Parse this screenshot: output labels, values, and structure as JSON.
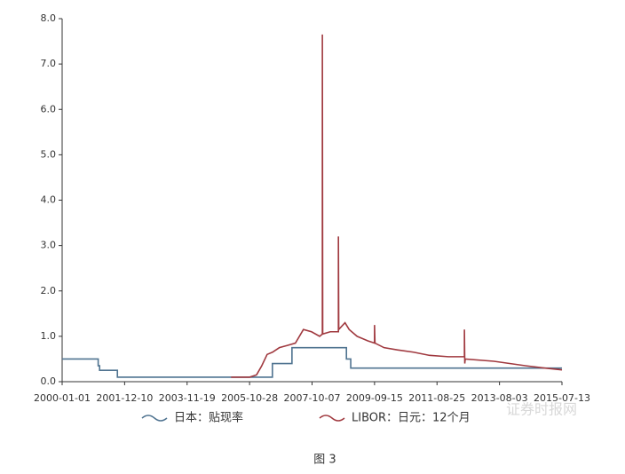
{
  "chart_data": {
    "type": "line",
    "xlim": [
      "2000-01-01",
      "2015-07-13"
    ],
    "xticks": [
      "2000-01-01",
      "2001-12-10",
      "2003-11-19",
      "2005-10-28",
      "2007-10-07",
      "2009-09-15",
      "2011-08-25",
      "2013-08-03",
      "2015-07-13"
    ],
    "ylim": [
      0,
      8
    ],
    "yticks": [
      {
        "value": 0,
        "label": "0.0"
      },
      {
        "value": 1,
        "label": "1.0"
      },
      {
        "value": 2,
        "label": "2.0"
      },
      {
        "value": 3,
        "label": "3.0"
      },
      {
        "value": 4,
        "label": "4.0"
      },
      {
        "value": 5,
        "label": "5.0"
      },
      {
        "value": 6,
        "label": "6.0"
      },
      {
        "value": 7,
        "label": "7.0"
      },
      {
        "value": 8,
        "label": "8.0"
      }
    ],
    "series": [
      {
        "name": "日本：贴现率",
        "color": "#4f7390",
        "x": [
          "2000-01-01",
          "2001-02-13",
          "2001-02-13",
          "2001-03-01",
          "2001-03-01",
          "2001-09-19",
          "2001-09-19",
          "2006-07-14",
          "2006-07-14",
          "2007-02-21",
          "2007-02-21",
          "2008-10-31",
          "2008-10-31",
          "2008-12-19",
          "2008-12-19",
          "2015-07-13"
        ],
        "values": [
          0.5,
          0.5,
          0.35,
          0.35,
          0.25,
          0.25,
          0.1,
          0.1,
          0.4,
          0.4,
          0.75,
          0.75,
          0.5,
          0.5,
          0.3,
          0.3
        ]
      },
      {
        "name": "LIBOR：日元：12个月",
        "color": "#a0393f",
        "x": [
          "2005-04-01",
          "2005-10-28",
          "2006-01-15",
          "2006-03-15",
          "2006-05-15",
          "2006-07-15",
          "2006-10-01",
          "2007-01-01",
          "2007-04-01",
          "2007-07-01",
          "2007-10-01",
          "2008-01-01",
          "2008-02-01",
          "2008-02-01",
          "2008-02-05",
          "2008-05-01",
          "2008-08-01",
          "2008-08-01",
          "2008-08-05",
          "2008-10-15",
          "2008-12-01",
          "2009-03-01",
          "2009-07-01",
          "2009-09-15",
          "2009-09-15",
          "2009-09-20",
          "2010-01-01",
          "2010-06-01",
          "2010-12-01",
          "2011-06-01",
          "2012-01-01",
          "2012-07-01",
          "2012-07-01",
          "2012-07-05",
          "2012-07-10",
          "2013-06-01",
          "2014-06-01",
          "2015-01-01",
          "2015-07-13"
        ],
        "values": [
          0.1,
          0.1,
          0.15,
          0.35,
          0.6,
          0.65,
          0.75,
          0.8,
          0.85,
          1.15,
          1.1,
          1.0,
          1.05,
          7.65,
          1.05,
          1.1,
          1.1,
          3.2,
          1.15,
          1.3,
          1.15,
          1.0,
          0.9,
          0.85,
          1.25,
          0.85,
          0.75,
          0.7,
          0.65,
          0.58,
          0.55,
          0.55,
          1.15,
          0.4,
          0.5,
          0.45,
          0.35,
          0.3,
          0.26
        ]
      }
    ],
    "watermark": "证券时报网",
    "caption": "图 3"
  }
}
